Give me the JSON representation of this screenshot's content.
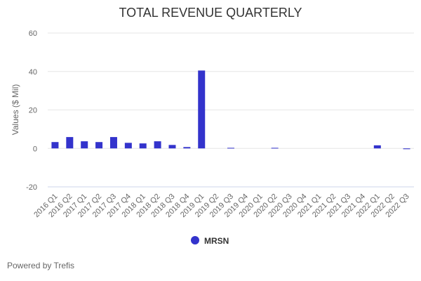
{
  "chart_data": {
    "type": "bar",
    "title": "TOTAL REVENUE QUARTERLY",
    "ylabel": "Values ($ Mil)",
    "xlabel": "",
    "ylim": [
      -20,
      60
    ],
    "yticks": [
      -20,
      0,
      20,
      40,
      60
    ],
    "grid": true,
    "legend_placement": "bottom",
    "categories": [
      "2016 Q1",
      "2016 Q2",
      "2017 Q1",
      "2017 Q2",
      "2017 Q3",
      "2017 Q4",
      "2018 Q1",
      "2018 Q2",
      "2018 Q3",
      "2018 Q4",
      "2019 Q1",
      "2019 Q2",
      "2019 Q3",
      "2019 Q4",
      "2020 Q1",
      "2020 Q2",
      "2020 Q3",
      "2020 Q4",
      "2021 Q1",
      "2021 Q2",
      "2021 Q3",
      "2021 Q4",
      "2022 Q1",
      "2022 Q2",
      "2022 Q3"
    ],
    "series": [
      {
        "name": "MRSN",
        "color": "#3333cc",
        "values": [
          3.3,
          5.9,
          3.7,
          3.3,
          5.9,
          2.9,
          2.6,
          3.7,
          1.8,
          0.7,
          40.5,
          0,
          0.3,
          0,
          0,
          0.3,
          0,
          0,
          0,
          0,
          0,
          0,
          1.6,
          0,
          -0.4
        ]
      }
    ]
  },
  "footer": "Powered by Trefis"
}
